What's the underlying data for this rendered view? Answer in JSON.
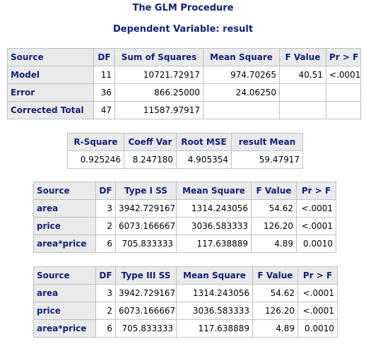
{
  "titles": {
    "procedure": "The GLM Procedure",
    "dependent": "Dependent Variable: result"
  },
  "anova": {
    "headers": [
      "Source",
      "DF",
      "Sum of Squares",
      "Mean Square",
      "F Value",
      "Pr > F"
    ],
    "rows": [
      {
        "source": "Model",
        "df": "11",
        "ss": "10721.72917",
        "ms": "974.70265",
        "f": "40.51",
        "p": "<.0001"
      },
      {
        "source": "Error",
        "df": "36",
        "ss": "866.25000",
        "ms": "24.06250",
        "f": "",
        "p": ""
      },
      {
        "source": "Corrected Total",
        "df": "47",
        "ss": "11587.97917",
        "ms": "",
        "f": "",
        "p": ""
      }
    ]
  },
  "fit": {
    "headers": [
      "R-Square",
      "Coeff Var",
      "Root MSE",
      "result Mean"
    ],
    "values": [
      "0.925246",
      "8.247180",
      "4.905354",
      "59.47917"
    ]
  },
  "type1": {
    "headers": [
      "Source",
      "DF",
      "Type I SS",
      "Mean Square",
      "F Value",
      "Pr > F"
    ],
    "rows": [
      {
        "source": "area",
        "df": "3",
        "ss": "3942.729167",
        "ms": "1314.243056",
        "f": "54.62",
        "p": "<.0001"
      },
      {
        "source": "price",
        "df": "2",
        "ss": "6073.166667",
        "ms": "3036.583333",
        "f": "126.20",
        "p": "<.0001"
      },
      {
        "source": "area*price",
        "df": "6",
        "ss": "705.833333",
        "ms": "117.638889",
        "f": "4.89",
        "p": "0.0010"
      }
    ]
  },
  "type3": {
    "headers": [
      "Source",
      "DF",
      "Type III SS",
      "Mean Square",
      "F Value",
      "Pr > F"
    ],
    "rows": [
      {
        "source": "area",
        "df": "3",
        "ss": "3942.729167",
        "ms": "1314.243056",
        "f": "54.62",
        "p": "<.0001"
      },
      {
        "source": "price",
        "df": "2",
        "ss": "6073.166667",
        "ms": "3036.583333",
        "f": "126.20",
        "p": "<.0001"
      },
      {
        "source": "area*price",
        "df": "6",
        "ss": "705.833333",
        "ms": "117.638889",
        "f": "4.89",
        "p": "0.0010"
      }
    ]
  },
  "colors": {
    "header_text": "#112277",
    "header_bg": "#eaeaea",
    "grid": "#c1c1c1"
  }
}
